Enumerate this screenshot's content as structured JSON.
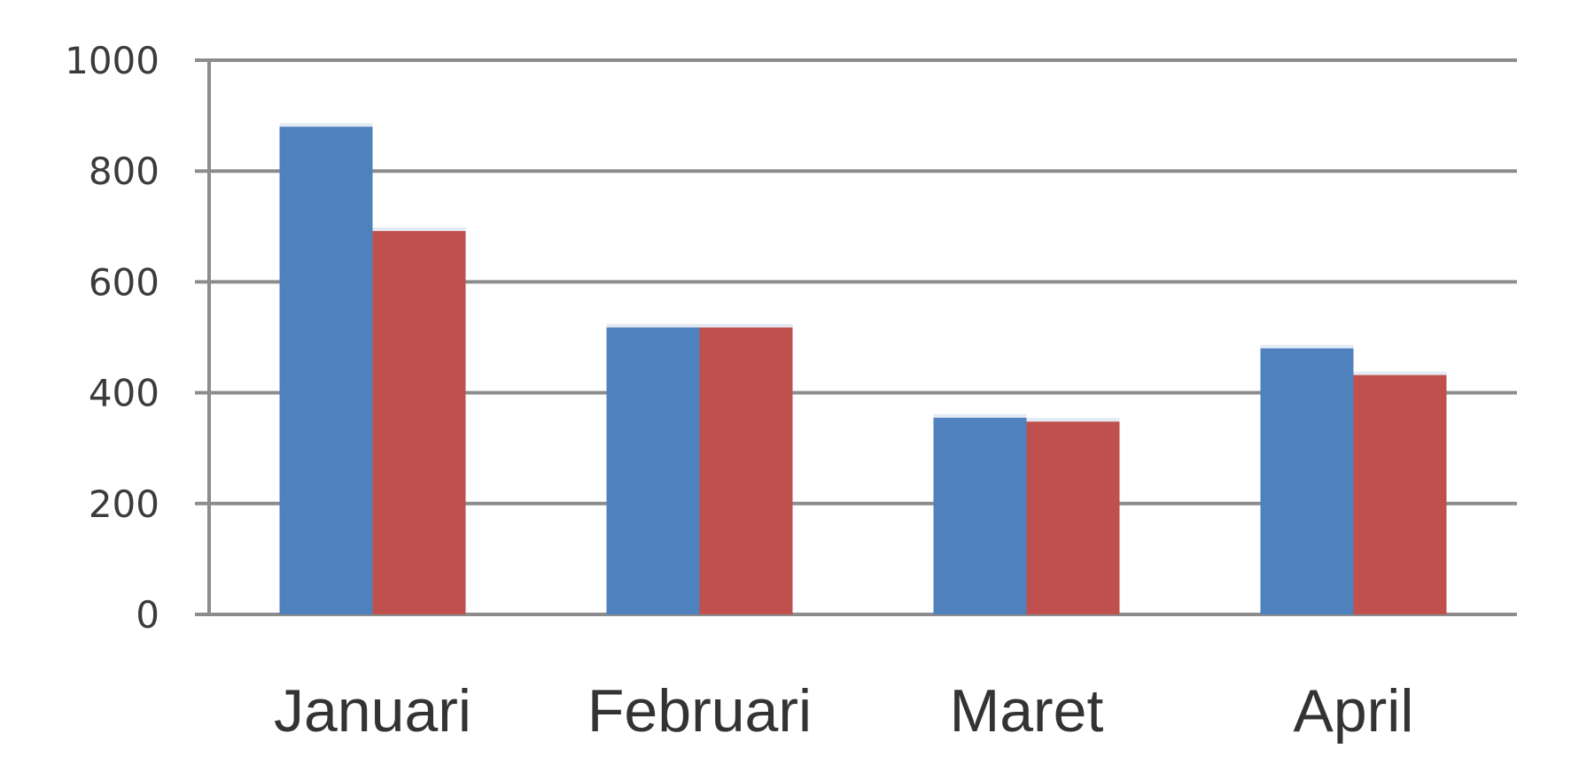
{
  "chart_data": {
    "type": "bar",
    "categories": [
      "Januari",
      "Februari",
      "Maret",
      "April"
    ],
    "series": [
      {
        "values": [
          880,
          518,
          355,
          480
        ],
        "color": "#4f81bd"
      },
      {
        "values": [
          692,
          518,
          348,
          432
        ],
        "color": "#c0504d"
      }
    ],
    "yticks": [
      "0",
      "200",
      "400",
      "600",
      "800",
      "1000"
    ],
    "ylim": [
      0,
      1000
    ],
    "grid": true,
    "legend": "none"
  }
}
